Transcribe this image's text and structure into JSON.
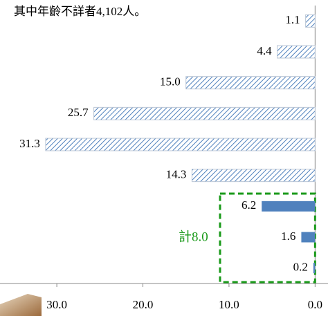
{
  "chart_data": {
    "type": "hbar",
    "title": "其中年齡不詳者4,102人。",
    "categories": [
      null,
      null,
      null,
      null,
      null,
      null,
      null,
      null,
      null
    ],
    "values": [
      1.1,
      4.4,
      15.0,
      25.7,
      31.3,
      14.3,
      6.2,
      1.6,
      0.2
    ],
    "value_labels": [
      "1.1",
      "4.4",
      "15.0",
      "25.7",
      "31.3",
      "14.3",
      "6.2",
      "1.6",
      "0.2"
    ],
    "bar_styles": [
      "hatched",
      "hatched",
      "hatched",
      "hatched",
      "hatched",
      "hatched",
      "solid",
      "solid",
      "solid"
    ],
    "color": "#4f81bd",
    "xlim": [
      36.6,
      -1.5
    ],
    "xticks": [
      {
        "value": 30,
        "label": "30.0"
      },
      {
        "value": 20,
        "label": "20.0"
      },
      {
        "value": 10,
        "label": "10.0"
      },
      {
        "value": 0,
        "label": "0.0"
      }
    ],
    "annotation": "計8.0",
    "annotation_color": "#1a9a1a",
    "grid": false
  }
}
